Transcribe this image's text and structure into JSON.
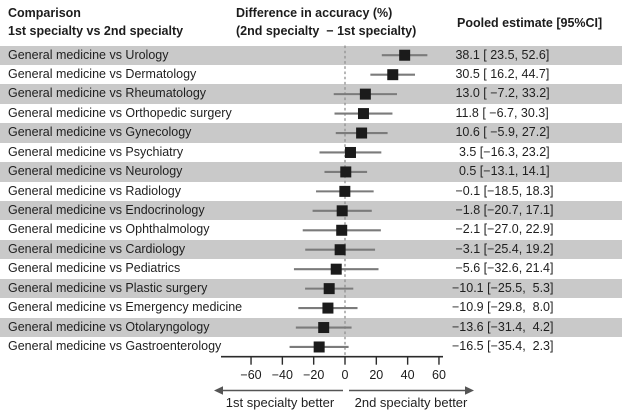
{
  "header": {
    "col1_line1": "Comparison",
    "col1_line2": "1st specialty vs 2nd specialty",
    "col2_line1": "Difference in accuracy (%)",
    "col2_line2": "(2nd specialty  − 1st specialty)",
    "col3": "Pooled estimate [95%CI]"
  },
  "chart_data": {
    "type": "forest",
    "x_ticks": [
      -60,
      -40,
      -20,
      0,
      20,
      40,
      60
    ],
    "xlim": [
      -79,
      62
    ],
    "zero_reference": 0,
    "grid": "off",
    "direction_labels": {
      "left": "1st specialty better",
      "right": "2nd specialty better"
    },
    "rows": [
      {
        "label": "General medicine vs Urology",
        "estimate": 38.1,
        "ci_low": 23.5,
        "ci_high": 52.6,
        "display": " 38.1 [ 23.5, 52.6]"
      },
      {
        "label": "General medicine vs Dermatology",
        "estimate": 30.5,
        "ci_low": 16.2,
        "ci_high": 44.7,
        "display": " 30.5 [ 16.2, 44.7]"
      },
      {
        "label": "General medicine vs Rheumatology",
        "estimate": 13.0,
        "ci_low": -7.2,
        "ci_high": 33.2,
        "display": " 13.0 [ −7.2, 33.2]"
      },
      {
        "label": "General medicine vs Orthopedic surgery",
        "estimate": 11.8,
        "ci_low": -6.7,
        "ci_high": 30.3,
        "display": " 11.8 [ −6.7, 30.3]"
      },
      {
        "label": "General medicine vs Gynecology",
        "estimate": 10.6,
        "ci_low": -5.9,
        "ci_high": 27.2,
        "display": " 10.6 [ −5.9, 27.2]"
      },
      {
        "label": "General medicine vs Psychiatry",
        "estimate": 3.5,
        "ci_low": -16.3,
        "ci_high": 23.2,
        "display": "  3.5 [−16.3, 23.2]"
      },
      {
        "label": "General medicine vs Neurology",
        "estimate": 0.5,
        "ci_low": -13.1,
        "ci_high": 14.1,
        "display": "  0.5 [−13.1, 14.1]"
      },
      {
        "label": "General medicine vs Radiology",
        "estimate": -0.1,
        "ci_low": -18.5,
        "ci_high": 18.3,
        "display": " −0.1 [−18.5, 18.3]"
      },
      {
        "label": "General medicine vs Endocrinology",
        "estimate": -1.8,
        "ci_low": -20.7,
        "ci_high": 17.1,
        "display": " −1.8 [−20.7, 17.1]"
      },
      {
        "label": "General medicine vs Ophthalmology",
        "estimate": -2.1,
        "ci_low": -27.0,
        "ci_high": 22.9,
        "display": " −2.1 [−27.0, 22.9]"
      },
      {
        "label": "General medicine vs Cardiology",
        "estimate": -3.1,
        "ci_low": -25.4,
        "ci_high": 19.2,
        "display": " −3.1 [−25.4, 19.2]"
      },
      {
        "label": "General medicine vs Pediatrics",
        "estimate": -5.6,
        "ci_low": -32.6,
        "ci_high": 21.4,
        "display": " −5.6 [−32.6, 21.4]"
      },
      {
        "label": "General medicine vs Plastic surgery",
        "estimate": -10.1,
        "ci_low": -25.5,
        "ci_high": 5.3,
        "display": "−10.1 [−25.5,  5.3]"
      },
      {
        "label": "General medicine vs Emergency medicine",
        "estimate": -10.9,
        "ci_low": -29.8,
        "ci_high": 8.0,
        "display": "−10.9 [−29.8,  8.0]"
      },
      {
        "label": "General medicine vs Otolaryngology",
        "estimate": -13.6,
        "ci_low": -31.4,
        "ci_high": 4.2,
        "display": "−13.6 [−31.4,  4.2]"
      },
      {
        "label": "General medicine vs Gastroenterology",
        "estimate": -16.5,
        "ci_low": -35.4,
        "ci_high": 2.3,
        "display": "−16.5 [−35.4,  2.3]"
      }
    ]
  },
  "colors": {
    "band": "#c9c9c9",
    "square": "#1b1b1b",
    "whisker": "#7b7b7b",
    "axis": "#2b2b2b",
    "dashed": "#909090",
    "arrow": "#555555",
    "text": "#1f1f1f"
  }
}
